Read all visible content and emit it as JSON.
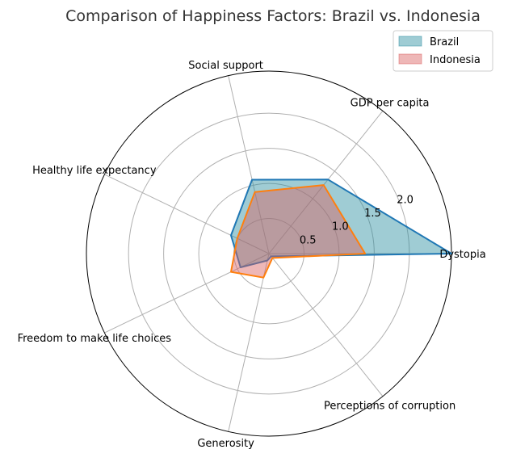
{
  "chart_data": {
    "type": "radar",
    "title": "Comparison of Happiness Factors: Brazil vs. Indonesia",
    "axes": [
      "Dystopia",
      "GDP per capita",
      "Social support",
      "Healthy life expectancy",
      "Freedom to make life choices",
      "Generosity",
      "Perceptions of corruption"
    ],
    "r_ticks": [
      0.5,
      1.0,
      1.5,
      2.0
    ],
    "r_tick_labels": [
      "0.5",
      "1.0",
      "1.5",
      "2.0"
    ],
    "rmax": 2.6,
    "grid": true,
    "legend_position": "top-right",
    "series": [
      {
        "name": "Brazil",
        "values": [
          2.6,
          1.35,
          1.08,
          0.6,
          0.45,
          0.1,
          0.05
        ],
        "line_color": "#1f77b4",
        "fill_color": "#2a8ea0"
      },
      {
        "name": "Indonesia",
        "values": [
          1.37,
          1.25,
          0.9,
          0.5,
          0.6,
          0.35,
          0.08
        ],
        "line_color": "#ff7f0e",
        "fill_color": "#d95f5f"
      }
    ]
  }
}
